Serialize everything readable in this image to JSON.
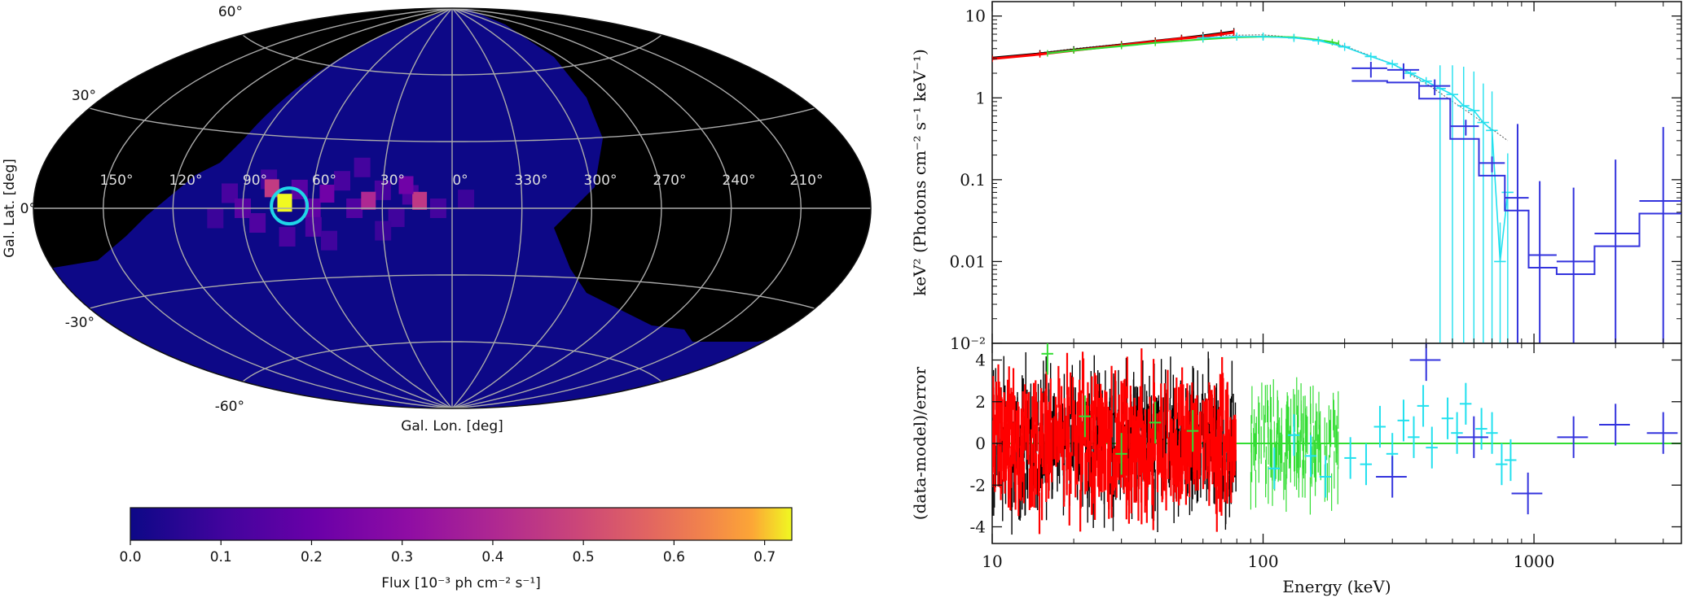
{
  "chart_data": [
    {
      "type": "heatmap",
      "projection": "Aitoff (galactic, all-sky)",
      "xlabel": "Gal. Lon. [deg]",
      "ylabel": "Gal. Lat. [deg]",
      "lon_tick_labels": [
        "150°",
        "120°",
        "90°",
        "60°",
        "30°",
        "0°",
        "330°",
        "300°",
        "270°",
        "240°",
        "210°"
      ],
      "lat_tick_labels": [
        "60°",
        "30°",
        "0°",
        "-30°",
        "-60°"
      ],
      "colorbar": {
        "label": "Flux [10⁻³ ph cm⁻² s⁻¹]",
        "range": [
          0.0,
          0.73
        ],
        "ticks": [
          "0.0",
          "0.1",
          "0.2",
          "0.3",
          "0.4",
          "0.5",
          "0.6",
          "0.7"
        ],
        "colormap": "plasma"
      },
      "hot_pixels": [
        {
          "lon": 78,
          "lat": 8,
          "flux": 0.46
        },
        {
          "lon": 72,
          "lat": 2,
          "flux": 0.73
        },
        {
          "lon": 54,
          "lat": 6,
          "flux": 0.22
        },
        {
          "lon": 36,
          "lat": 3,
          "flux": 0.4
        },
        {
          "lon": 14,
          "lat": 3,
          "flux": 0.45
        },
        {
          "lon": 20,
          "lat": 10,
          "flux": 0.22
        }
      ],
      "source_circle": {
        "lon": 70,
        "lat": 1,
        "color": "#1fd6e8"
      },
      "colors": {
        "background": "#000000",
        "sky": "#0d0887",
        "grid": "#aaaaaa"
      }
    },
    {
      "type": "line",
      "panel": "spectrum",
      "xscale": "log",
      "yscale": "log",
      "xlim": [
        10,
        3500
      ],
      "ylim": [
        0.001,
        15
      ],
      "ylabel": "keV² (Photons cm⁻² s⁻¹ keV⁻¹)",
      "x_tick_labels": [
        "10",
        "100",
        "1000"
      ],
      "y_tick_labels": [
        "10",
        "1",
        "0.1",
        "0.01",
        "10⁻²"
      ],
      "model_line": {
        "x": [
          10,
          20,
          40,
          70,
          100,
          150,
          200,
          300,
          400,
          600,
          800
        ],
        "y": [
          3.0,
          4.0,
          5.0,
          5.8,
          5.9,
          5.3,
          4.3,
          2.6,
          1.5,
          0.6,
          0.3
        ]
      },
      "series": [
        {
          "name": "black",
          "color": "#000000",
          "x": [
            10,
            15,
            20,
            30,
            40,
            50,
            60,
            70,
            78
          ],
          "y": [
            3.1,
            3.5,
            3.9,
            4.5,
            5.0,
            5.4,
            5.8,
            6.2,
            6.5
          ]
        },
        {
          "name": "red",
          "color": "#ff0000",
          "x": [
            10,
            15,
            20,
            30,
            40,
            50,
            60,
            70,
            78
          ],
          "y": [
            3.0,
            3.4,
            3.8,
            4.4,
            4.9,
            5.3,
            5.6,
            6.0,
            6.3
          ]
        },
        {
          "name": "green",
          "color": "#33dd33",
          "x": [
            16,
            20,
            30,
            40,
            60,
            80,
            100,
            130,
            160,
            180,
            190
          ],
          "y": [
            3.5,
            3.8,
            4.3,
            4.7,
            5.2,
            5.5,
            5.6,
            5.5,
            5.1,
            4.8,
            4.6
          ]
        },
        {
          "name": "cyan",
          "color": "#22e0ee",
          "x": [
            60,
            80,
            100,
            130,
            160,
            200,
            250,
            300,
            350,
            400,
            450,
            500,
            550,
            600,
            650,
            700,
            750,
            800
          ],
          "y": [
            5.4,
            5.6,
            5.6,
            5.4,
            5.0,
            4.2,
            3.2,
            2.6,
            2.0,
            1.6,
            1.3,
            1.1,
            0.8,
            0.7,
            0.5,
            0.4,
            0.01,
            0.07
          ]
        },
        {
          "name": "blue",
          "color": "#3333dd",
          "x": [
            250,
            330,
            430,
            560,
            700,
            870,
            1050,
            1400,
            2000,
            3000
          ],
          "y": [
            2.3,
            2.2,
            1.4,
            0.45,
            0.16,
            0.06,
            0.012,
            0.01,
            0.022,
            0.055
          ]
        }
      ]
    },
    {
      "type": "scatter",
      "panel": "residuals",
      "xscale": "log",
      "xlim": [
        10,
        3500
      ],
      "ylim": [
        -4.8,
        4.8
      ],
      "xlabel": "Energy (keV)",
      "ylabel": "(data-model)/error",
      "x_tick_labels": [
        "10",
        "100",
        "1000"
      ],
      "y_tick_labels": [
        "4",
        "2",
        "0",
        "-2",
        "-4"
      ],
      "zero_line_color": "#33dd33",
      "series": [
        {
          "name": "cyan",
          "color": "#22e0ee",
          "x": [
            110,
            130,
            150,
            170,
            210,
            240,
            270,
            300,
            330,
            360,
            390,
            420,
            480,
            520,
            560,
            640,
            700,
            760,
            820
          ],
          "y": [
            -1.2,
            0.4,
            -0.6,
            -1.6,
            -0.7,
            -1.0,
            0.8,
            -0.5,
            1.1,
            0.3,
            1.8,
            -0.2,
            1.2,
            0.5,
            1.9,
            0.7,
            0.5,
            -1.0,
            -0.8
          ]
        },
        {
          "name": "green",
          "color": "#33dd33",
          "x": [
            16,
            22,
            30,
            40,
            55
          ],
          "y": [
            4.3,
            1.3,
            -0.5,
            1.0,
            0.6
          ]
        },
        {
          "name": "blue",
          "color": "#3333dd",
          "x": [
            300,
            400,
            600,
            950,
            1400,
            2000,
            3000
          ],
          "y": [
            -1.6,
            4.0,
            0.3,
            -2.4,
            0.3,
            0.9,
            0.5
          ]
        }
      ]
    }
  ]
}
